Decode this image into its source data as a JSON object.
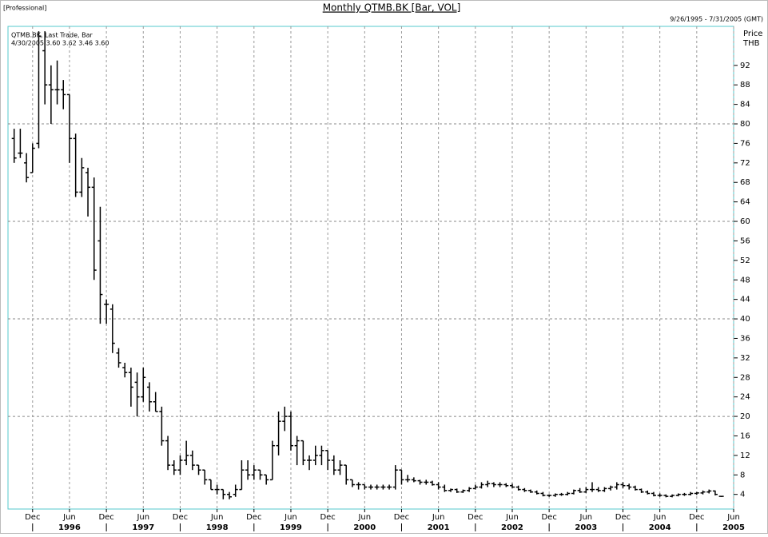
{
  "header_left": "[Professional]",
  "chart_data": {
    "type": "ohlc",
    "title": "Monthly QTMB.BK [Bar, VOL]",
    "date_range": "9/26/1995 - 7/31/2005 (GMT)",
    "legend_text": "QTMB.BK, Last Trade, Bar",
    "last_bar": "4/30/2005 3.60 3.62 3.46 3.60",
    "y_label": "Price",
    "y_unit": "THB",
    "color": "#000000",
    "x": [
      "1995-09",
      "1995-10",
      "1995-11",
      "1995-12",
      "1996-01",
      "1996-02",
      "1996-03",
      "1996-04",
      "1996-05",
      "1996-06",
      "1996-07",
      "1996-08",
      "1996-09",
      "1996-10",
      "1996-11",
      "1996-12",
      "1997-01",
      "1997-02",
      "1997-03",
      "1997-04",
      "1997-05",
      "1997-06",
      "1997-07",
      "1997-08",
      "1997-09",
      "1997-10",
      "1997-11",
      "1997-12",
      "1998-01",
      "1998-02",
      "1998-03",
      "1998-04",
      "1998-05",
      "1998-06",
      "1998-07",
      "1998-08",
      "1998-09",
      "1998-10",
      "1998-11",
      "1998-12",
      "1999-01",
      "1999-02",
      "1999-03",
      "1999-04",
      "1999-05",
      "1999-06",
      "1999-07",
      "1999-08",
      "1999-09",
      "1999-10",
      "1999-11",
      "1999-12",
      "2000-01",
      "2000-02",
      "2000-03",
      "2000-04",
      "2000-05",
      "2000-06",
      "2000-07",
      "2000-08",
      "2000-09",
      "2000-10",
      "2000-11",
      "2000-12",
      "2001-01",
      "2001-02",
      "2001-03",
      "2001-04",
      "2001-05",
      "2001-06",
      "2001-07",
      "2001-08",
      "2001-09",
      "2001-10",
      "2001-11",
      "2001-12",
      "2002-01",
      "2002-02",
      "2002-03",
      "2002-04",
      "2002-05",
      "2002-06",
      "2002-07",
      "2002-08",
      "2002-09",
      "2002-10",
      "2002-11",
      "2002-12",
      "2003-01",
      "2003-02",
      "2003-03",
      "2003-04",
      "2003-05",
      "2003-06",
      "2003-07",
      "2003-08",
      "2003-09",
      "2003-10",
      "2003-11",
      "2003-12",
      "2004-01",
      "2004-02",
      "2004-03",
      "2004-04",
      "2004-05",
      "2004-06",
      "2004-07",
      "2004-08",
      "2004-09",
      "2004-10",
      "2004-11",
      "2004-12",
      "2005-01",
      "2005-02",
      "2005-03",
      "2005-04"
    ],
    "open": [
      77,
      74,
      72,
      70,
      76,
      95,
      88,
      87,
      87,
      86,
      77,
      66,
      70,
      67,
      56,
      43,
      42,
      33,
      30,
      29,
      27,
      24,
      26,
      23,
      21,
      15,
      10,
      9,
      11,
      12,
      10,
      9,
      7,
      5,
      5,
      4,
      4,
      5,
      9,
      8,
      9,
      8,
      7,
      14,
      19,
      20,
      14,
      15,
      11,
      11,
      12,
      13,
      11,
      9,
      10,
      7,
      6,
      6,
      5.5,
      5.5,
      5.5,
      5.5,
      5.5,
      9,
      7,
      7,
      6.8,
      6.5,
      6.5,
      6,
      5.5,
      4.8,
      5,
      4.5,
      4.8,
      5.2,
      5.5,
      6,
      6.2,
      6,
      6,
      5.8,
      5.5,
      5,
      4.8,
      4.5,
      4.2,
      3.8,
      3.8,
      4,
      4,
      4.2,
      4.8,
      4.5,
      5,
      5,
      4.8,
      5.2,
      5.5,
      6,
      5.8,
      5.5,
      5,
      4.5,
      4.2,
      3.8,
      3.8,
      3.6,
      3.8,
      4,
      4,
      4.2,
      4.3,
      4.5,
      4.7,
      3.6
    ],
    "high": [
      79,
      79,
      74,
      76,
      99,
      99,
      92,
      93,
      89,
      86,
      78,
      73,
      71,
      69,
      63,
      44,
      43,
      34,
      31,
      30,
      29,
      30,
      27,
      25,
      22,
      16,
      11,
      12,
      15,
      13,
      10,
      9,
      7,
      6,
      5,
      4.5,
      6,
      11,
      11,
      10,
      9,
      8,
      15,
      21,
      22,
      21,
      16,
      15,
      12,
      14,
      14,
      13,
      12,
      11,
      10,
      7,
      6.5,
      6,
      6,
      6,
      6,
      6,
      10,
      9,
      8,
      7.5,
      7,
      7,
      6.8,
      6.5,
      6,
      5.2,
      5.2,
      5,
      5.5,
      6,
      6.5,
      6.8,
      6.5,
      6.5,
      6.3,
      6.2,
      5.8,
      5.3,
      5,
      4.8,
      4.5,
      4,
      4.2,
      4.3,
      4.5,
      5,
      5.3,
      5.5,
      6.5,
      5.5,
      5.5,
      5.8,
      6.5,
      6.5,
      6.2,
      5.8,
      5.2,
      4.8,
      4.5,
      4.2,
      4,
      4,
      4.2,
      4.3,
      4.5,
      4.5,
      4.8,
      5,
      4.8,
      3.62
    ],
    "low": [
      72,
      73,
      68,
      70,
      75,
      84,
      80,
      84,
      83,
      72,
      65,
      65,
      61,
      48,
      39,
      39,
      33,
      30,
      28,
      22,
      20,
      23,
      21,
      21,
      14,
      9,
      8,
      8,
      10,
      9,
      8,
      6,
      5,
      4,
      3,
      3,
      3.5,
      5,
      7,
      7,
      7,
      6,
      7,
      12,
      17,
      13,
      10,
      10,
      9,
      10,
      10,
      9,
      8,
      8,
      6,
      5.5,
      5,
      5,
      5,
      5,
      5,
      5,
      5,
      6,
      6.5,
      6.5,
      6,
      6,
      5.8,
      5,
      4.5,
      4.5,
      4.3,
      4.3,
      4.5,
      5,
      5.2,
      5.5,
      5.5,
      5.5,
      5.5,
      5.3,
      4.8,
      4.5,
      4.3,
      4,
      3.6,
      3.5,
      3.5,
      3.7,
      3.8,
      4,
      4.3,
      4.3,
      4.5,
      4.5,
      4.5,
      4.8,
      5,
      5.3,
      5,
      4.8,
      4.3,
      4,
      3.6,
      3.5,
      3.4,
      3.4,
      3.6,
      3.7,
      3.8,
      3.9,
      4,
      4.2,
      3.8,
      3.46
    ],
    "close": [
      73,
      74,
      69,
      75,
      98,
      88,
      87,
      87,
      86,
      77,
      66,
      71,
      67,
      50,
      45,
      43,
      35,
      31,
      29,
      26,
      24,
      28,
      23,
      21,
      15,
      10,
      9,
      11,
      12,
      10,
      9,
      7,
      5,
      5,
      4,
      3.5,
      5,
      9,
      8,
      9,
      8,
      7,
      14,
      19,
      20,
      14,
      15,
      11,
      11,
      12,
      13,
      11,
      9,
      10,
      7,
      6,
      6,
      5.5,
      5.5,
      5.5,
      5.5,
      5.5,
      9,
      7,
      7,
      6.8,
      6.5,
      6.5,
      6,
      5.5,
      4.8,
      5,
      4.5,
      4.8,
      5.2,
      5.5,
      6,
      6.2,
      6,
      6,
      5.8,
      5.5,
      5,
      4.8,
      4.5,
      4.2,
      3.8,
      3.8,
      4,
      4,
      4.2,
      4.8,
      4.5,
      5,
      5,
      4.8,
      5.2,
      5.5,
      6,
      5.8,
      5.5,
      5,
      4.5,
      4.2,
      3.8,
      3.8,
      3.6,
      3.8,
      4,
      4,
      4.2,
      4.3,
      4.5,
      4.7,
      4,
      3.6
    ],
    "xlim": [
      "1995-08",
      "2005-06"
    ],
    "xticks": [
      {
        "value": "1995-12",
        "label": "Dec"
      },
      {
        "value": "1996-06",
        "label": "Jun"
      },
      {
        "value": "1996-12",
        "label": "Dec"
      },
      {
        "value": "1997-06",
        "label": "Jun"
      },
      {
        "value": "1997-12",
        "label": "Dec"
      },
      {
        "value": "1998-06",
        "label": "Jun"
      },
      {
        "value": "1998-12",
        "label": "Dec"
      },
      {
        "value": "1999-06",
        "label": "Jun"
      },
      {
        "value": "1999-12",
        "label": "Dec"
      },
      {
        "value": "2000-06",
        "label": "Jun"
      },
      {
        "value": "2000-12",
        "label": "Dec"
      },
      {
        "value": "2001-06",
        "label": "Jun"
      },
      {
        "value": "2001-12",
        "label": "Dec"
      },
      {
        "value": "2002-06",
        "label": "Jun"
      },
      {
        "value": "2002-12",
        "label": "Dec"
      },
      {
        "value": "2003-06",
        "label": "Jun"
      },
      {
        "value": "2003-12",
        "label": "Dec"
      },
      {
        "value": "2004-06",
        "label": "Jun"
      },
      {
        "value": "2004-12",
        "label": "Dec"
      },
      {
        "value": "2005-06",
        "label": "Jun"
      }
    ],
    "year_labels": [
      {
        "value": "1996-06",
        "label": "1996"
      },
      {
        "value": "1997-06",
        "label": "1997"
      },
      {
        "value": "1998-06",
        "label": "1998"
      },
      {
        "value": "1999-06",
        "label": "1999"
      },
      {
        "value": "2000-06",
        "label": "2000"
      },
      {
        "value": "2001-06",
        "label": "2001"
      },
      {
        "value": "2002-06",
        "label": "2002"
      },
      {
        "value": "2003-06",
        "label": "2003"
      },
      {
        "value": "2004-06",
        "label": "2004"
      },
      {
        "value": "2005-06",
        "label": "2005"
      }
    ],
    "ylim": [
      1,
      100
    ],
    "yticks": [
      4,
      8,
      12,
      16,
      20,
      24,
      28,
      32,
      36,
      40,
      44,
      48,
      52,
      56,
      60,
      64,
      68,
      72,
      76,
      80,
      84,
      88,
      92
    ],
    "ygrid": [
      20,
      40,
      60,
      80
    ],
    "grid": true
  }
}
